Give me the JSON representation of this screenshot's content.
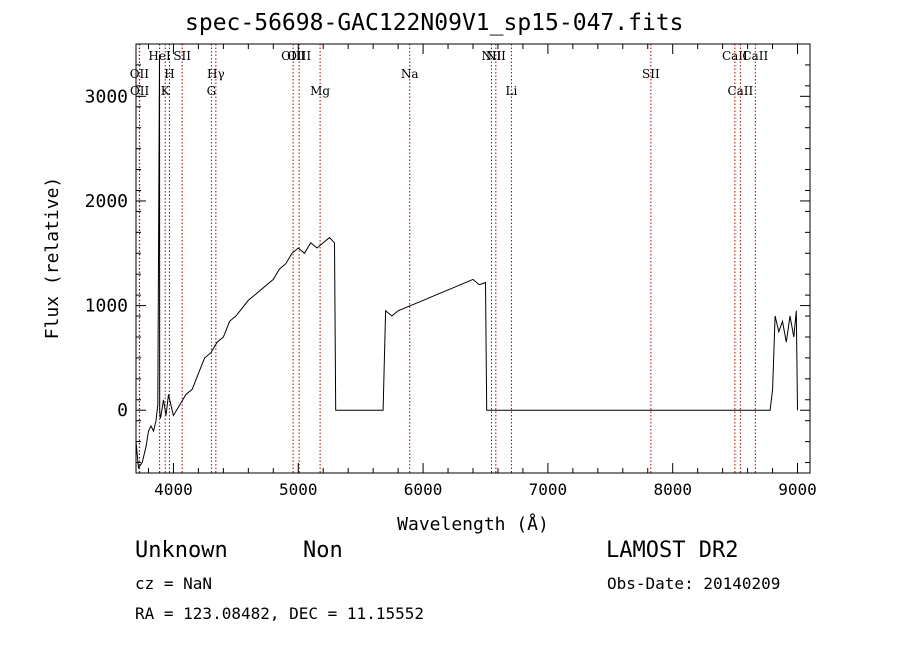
{
  "chart_data": {
    "type": "line",
    "title": "spec-56698-GAC122N09V1_sp15-047.fits",
    "xlabel": "Wavelength (Å)",
    "ylabel": "Flux (relative)",
    "xlim": [
      3700,
      9100
    ],
    "ylim": [
      -600,
      3500
    ],
    "x_ticks": [
      4000,
      5000,
      6000,
      7000,
      8000,
      9000
    ],
    "x_tick_labels": [
      "4000",
      "5000",
      "6000",
      "7000",
      "8000",
      "9000"
    ],
    "y_ticks": [
      0,
      1000,
      2000,
      3000
    ],
    "y_tick_labels": [
      "0",
      "1000",
      "2000",
      "3000"
    ],
    "grid": false,
    "series": [
      {
        "x": [
          3700,
          3720,
          3750,
          3780,
          3800,
          3820,
          3840,
          3860,
          3875,
          3888,
          3890,
          3895,
          3900,
          3920,
          3940,
          3960,
          3980,
          4000,
          4050,
          4100,
          4150,
          4200,
          4250,
          4300,
          4350,
          4400,
          4450,
          4500,
          4600,
          4700,
          4800,
          4850,
          4900,
          4950,
          5000,
          5050,
          5100,
          5150,
          5200,
          5250,
          5290,
          5300,
          5500,
          5680,
          5700,
          5750,
          5800,
          5900,
          6000,
          6100,
          6200,
          6300,
          6400,
          6450,
          6500,
          6510,
          6800,
          7000,
          7200,
          7400,
          7600,
          7800,
          8000,
          8200,
          8400,
          8600,
          8780,
          8800,
          8820,
          8850,
          8880,
          8910,
          8940,
          8970,
          8990,
          9000
        ],
        "y": [
          -300,
          -550,
          -500,
          -350,
          -200,
          -150,
          -200,
          -100,
          50,
          3400,
          0,
          -80,
          -50,
          100,
          -50,
          150,
          50,
          -50,
          50,
          150,
          200,
          350,
          500,
          550,
          650,
          700,
          850,
          900,
          1050,
          1150,
          1250,
          1350,
          1400,
          1500,
          1550,
          1500,
          1600,
          1550,
          1600,
          1650,
          1600,
          0,
          0,
          0,
          950,
          900,
          950,
          1000,
          1050,
          1100,
          1150,
          1200,
          1250,
          1200,
          1220,
          0,
          0,
          0,
          0,
          0,
          0,
          0,
          0,
          0,
          0,
          0,
          0,
          200,
          900,
          750,
          850,
          650,
          900,
          700,
          950,
          0
        ]
      }
    ],
    "lines": [
      {
        "label": "OII",
        "x": 3727,
        "row": 1
      },
      {
        "label": "OII",
        "x": 3729,
        "row": 2
      },
      {
        "label": "HeI",
        "x": 3889,
        "row": 0
      },
      {
        "label": "SII",
        "x": 4070,
        "row": 0
      },
      {
        "label": "H",
        "x": 3968,
        "row": 1
      },
      {
        "label": "K",
        "x": 3934,
        "row": 2
      },
      {
        "label": "Hγ",
        "x": 4340,
        "row": 1
      },
      {
        "label": "G",
        "x": 4304,
        "row": 2
      },
      {
        "label": "OIII",
        "x": 4959,
        "row": 0
      },
      {
        "label": "OIII",
        "x": 5007,
        "row": 0
      },
      {
        "label": "Mg",
        "x": 5175,
        "row": 2
      },
      {
        "label": "Na",
        "x": 5893,
        "row": 1
      },
      {
        "label": "NII",
        "x": 6548,
        "row": 0
      },
      {
        "label": "NII",
        "x": 6583,
        "row": 0
      },
      {
        "label": "Li",
        "x": 6708,
        "row": 2
      },
      {
        "label": "SII",
        "x": 7825,
        "row": 1
      },
      {
        "label": "CaII",
        "x": 8498,
        "row": 0
      },
      {
        "label": "CaII",
        "x": 8542,
        "row": 2
      },
      {
        "label": "CaII",
        "x": 8662,
        "row": 0
      }
    ]
  },
  "footer": {
    "object_class": "Unknown",
    "object_subclass": "Non",
    "survey": "LAMOST DR2",
    "cz": "cz = NaN",
    "obs_date": "Obs-Date: 20140209",
    "radec": "RA = 123.08482, DEC =  11.15552"
  }
}
